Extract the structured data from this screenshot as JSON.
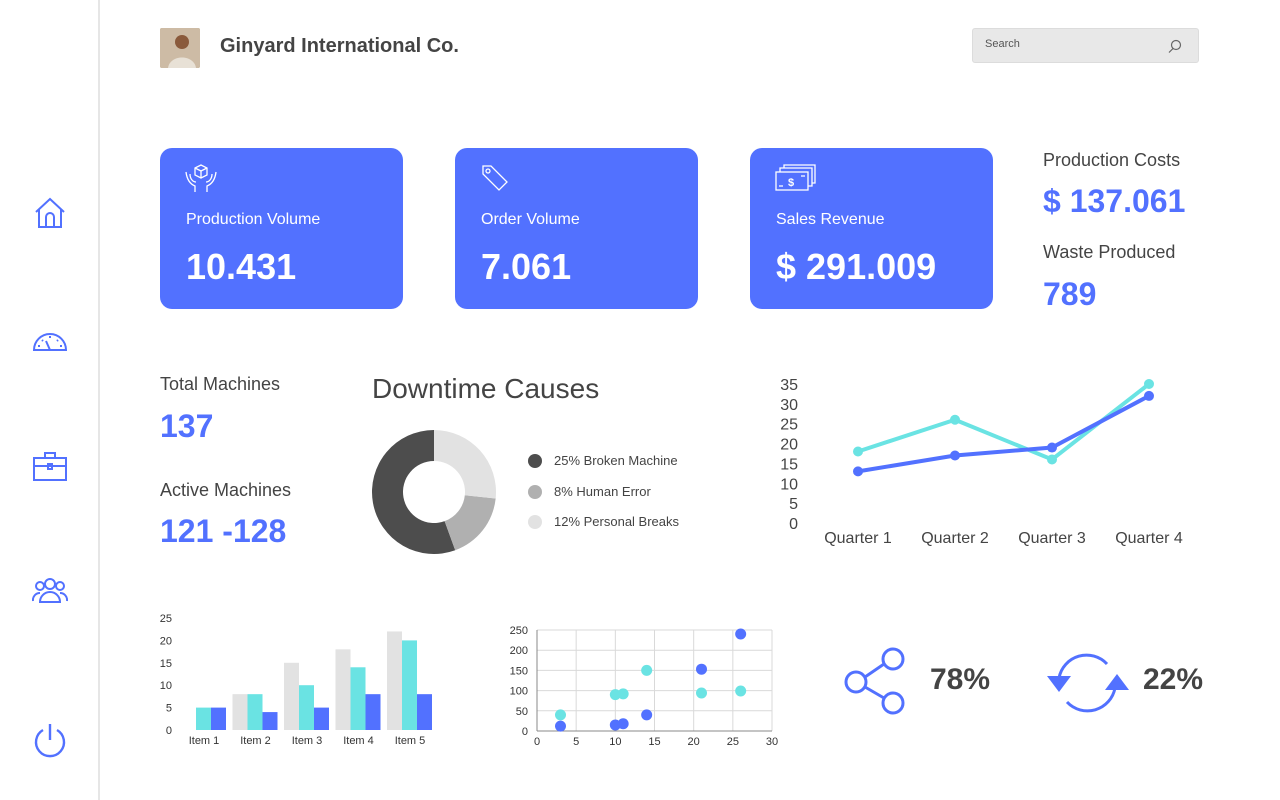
{
  "header": {
    "company": "Ginyard International Co.",
    "search_placeholder": "Search"
  },
  "sidebar": {
    "items": [
      {
        "icon": "home-icon"
      },
      {
        "icon": "speedometer-icon"
      },
      {
        "icon": "briefcase-icon"
      },
      {
        "icon": "users-icon"
      },
      {
        "icon": "power-icon"
      }
    ]
  },
  "kpis": [
    {
      "icon": "package-hands-icon",
      "label": "Production Volume",
      "value": "10.431"
    },
    {
      "icon": "price-tag-icon",
      "label": "Order Volume",
      "value": "7.061"
    },
    {
      "icon": "cash-icon",
      "label": "Sales Revenue",
      "value": "$ 291.009"
    }
  ],
  "stats": {
    "production_costs_label": "Production Costs",
    "production_costs_value": "$ 137.061",
    "waste_label": "Waste Produced",
    "waste_value": "789",
    "total_machines_label": "Total Machines",
    "total_machines_value": "137",
    "active_machines_label": "Active Machines",
    "active_machines_value": "121 -128"
  },
  "percentages": {
    "share_value": "78%",
    "refresh_value": "22%"
  },
  "colors": {
    "accent": "#5271ff",
    "teal": "#6ae3e3",
    "light_gray": "#e2e2e2",
    "dark_gray": "#4d4d4d",
    "mid_gray": "#b0b0b0"
  },
  "chart_data": [
    {
      "type": "pie",
      "title": "Downtime Causes",
      "labels": [
        "25% Broken Machine",
        "8% Human Error",
        "12% Personal Breaks"
      ],
      "values": [
        25,
        8,
        12
      ],
      "colors": [
        "#4d4d4d",
        "#b0b0b0",
        "#e2e2e2"
      ],
      "donut": true
    },
    {
      "type": "line",
      "categories": [
        "Quarter 1",
        "Quarter 2",
        "Quarter 3",
        "Quarter 4"
      ],
      "series": [
        {
          "color": "#6ae3e3",
          "values": [
            18,
            26,
            16,
            35
          ]
        },
        {
          "color": "#5271ff",
          "values": [
            13,
            17,
            19,
            32
          ]
        }
      ],
      "yticks": [
        0,
        5,
        10,
        15,
        20,
        25,
        30,
        35
      ],
      "ylim": [
        0,
        35
      ],
      "grid": false
    },
    {
      "type": "bar",
      "categories": [
        "Item 1",
        "Item 2",
        "Item 3",
        "Item 4",
        "Item 5"
      ],
      "series": [
        {
          "color": "#e2e2e2",
          "values": [
            0,
            8,
            15,
            18,
            22
          ]
        },
        {
          "color": "#6ae3e3",
          "values": [
            5,
            8,
            10,
            14,
            20
          ]
        },
        {
          "color": "#5271ff",
          "values": [
            5,
            4,
            5,
            8,
            8
          ]
        }
      ],
      "yticks": [
        0,
        5,
        10,
        15,
        20,
        25
      ],
      "ylim": [
        0,
        25
      ]
    },
    {
      "type": "scatter",
      "xlim": [
        0,
        30
      ],
      "ylim": [
        0,
        250
      ],
      "xticks": [
        0,
        5,
        10,
        15,
        20,
        25,
        30
      ],
      "yticks": [
        0,
        50,
        100,
        150,
        200,
        250
      ],
      "grid": true,
      "series": [
        {
          "color": "#6ae3e3",
          "points": [
            [
              3,
              40
            ],
            [
              10,
              90
            ],
            [
              11,
              92
            ],
            [
              14,
              150
            ],
            [
              21,
              94
            ],
            [
              26,
              99
            ]
          ]
        },
        {
          "color": "#5271ff",
          "points": [
            [
              3,
              12
            ],
            [
              10,
              15
            ],
            [
              11,
              18
            ],
            [
              14,
              40
            ],
            [
              21,
              153
            ],
            [
              26,
              240
            ]
          ]
        }
      ]
    }
  ]
}
